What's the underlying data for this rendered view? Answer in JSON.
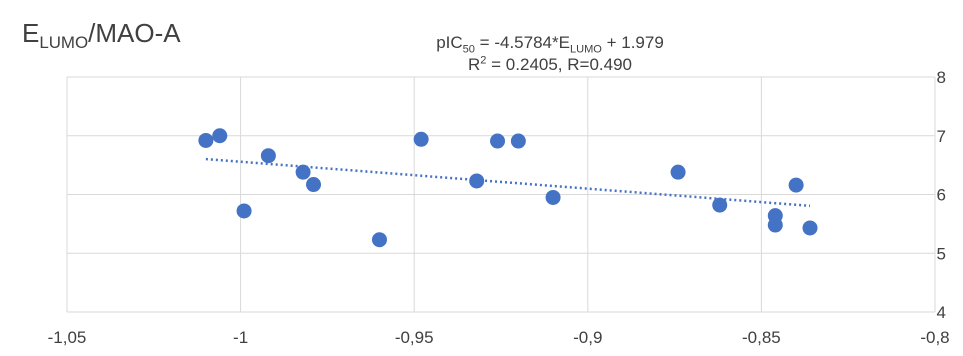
{
  "chart_data": {
    "type": "scatter",
    "title": {
      "main": "E",
      "sub": "LUMO",
      "tail": "/MAO-A"
    },
    "equation": {
      "line1": {
        "a": "pIC",
        "a_sub": "50",
        "b": " = -4.5784*E",
        "b_sub": "LUMO",
        "c": " + 1.979"
      },
      "line2": {
        "a": "R",
        "a_sup": "2",
        "b": " = 0.2405, R=0.490"
      }
    },
    "x_ticks": [
      "-1,05",
      "-1",
      "-0,95",
      "-0,9",
      "-0,85",
      "-0,8"
    ],
    "y_ticks": [
      "4",
      "5",
      "6",
      "7",
      "8"
    ],
    "xlim": [
      -1.05,
      -0.8
    ],
    "ylim": [
      4,
      8
    ],
    "grid": true,
    "colors": {
      "points": "#4472c4",
      "trendline": "#4472c4",
      "grid": "#d9d9d9"
    },
    "trendline": {
      "slope": -4.5784,
      "intercept": 1.979,
      "x_range": [
        -1.01,
        -0.836
      ]
    },
    "series": [
      {
        "x": [
          -1.01,
          -1.006,
          -0.999,
          -0.992,
          -0.982,
          -0.979,
          -0.96,
          -0.948,
          -0.932,
          -0.926,
          -0.92,
          -0.91,
          -0.874,
          -0.862,
          -0.846,
          -0.846,
          -0.84,
          -0.836
        ],
        "y": [
          6.92,
          7.0,
          5.72,
          6.66,
          6.38,
          6.17,
          5.23,
          6.94,
          6.23,
          6.91,
          6.91,
          5.95,
          6.38,
          5.82,
          5.64,
          5.48,
          6.16,
          5.43
        ]
      }
    ]
  }
}
